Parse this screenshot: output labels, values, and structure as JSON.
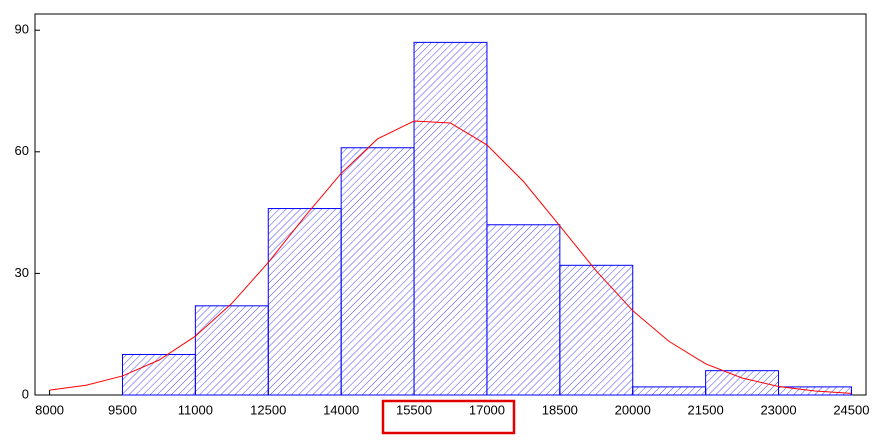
{
  "chart_data": {
    "type": "histogram",
    "bins": [
      8000,
      9500,
      11000,
      12500,
      14000,
      15500,
      17000,
      18500,
      20000,
      21500,
      23000,
      24500
    ],
    "values": [
      0,
      10,
      22,
      46,
      61,
      87,
      42,
      32,
      2,
      6,
      2
    ],
    "color": "#0000ff",
    "curve": {
      "color": "#ff0000",
      "x": [
        8000,
        8750,
        9500,
        10250,
        11000,
        11750,
        12500,
        13250,
        14000,
        14750,
        15500,
        16250,
        17000,
        17750,
        18500,
        19250,
        20000,
        20750,
        21500,
        22250,
        23000,
        23750,
        24500
      ],
      "values": [
        1.2,
        2.4,
        4.7,
        8.6,
        14.5,
        22.6,
        32.7,
        44.0,
        54.7,
        63.2,
        67.6,
        67.1,
        61.7,
        52.7,
        41.7,
        30.6,
        20.8,
        13.2,
        7.7,
        4.2,
        2.1,
        1.0,
        0.4
      ]
    },
    "xlim": [
      7700,
      24800
    ],
    "ylim": [
      0,
      94
    ],
    "xticks": [
      8000,
      9500,
      11000,
      12500,
      14000,
      15500,
      17000,
      18500,
      20000,
      21500,
      23000,
      24500
    ],
    "yticks": [
      0,
      30,
      60,
      90
    ]
  }
}
